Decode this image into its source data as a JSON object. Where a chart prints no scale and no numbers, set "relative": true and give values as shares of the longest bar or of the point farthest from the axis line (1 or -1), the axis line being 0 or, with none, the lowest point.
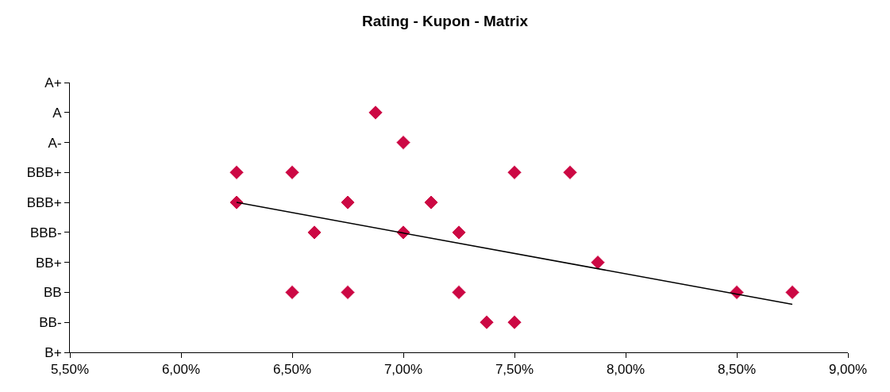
{
  "chart_data": {
    "type": "scatter",
    "title": "Rating - Kupon - Matrix",
    "xlim": [
      5.5,
      9.0
    ],
    "xticks": [
      {
        "value": 5.5,
        "label": "5,50%"
      },
      {
        "value": 6.0,
        "label": "6,00%"
      },
      {
        "value": 6.5,
        "label": "6,50%"
      },
      {
        "value": 7.0,
        "label": "7,00%"
      },
      {
        "value": 7.5,
        "label": "7,50%"
      },
      {
        "value": 8.0,
        "label": "8,00%"
      },
      {
        "value": 8.5,
        "label": "8,50%"
      },
      {
        "value": 9.0,
        "label": "9,00%"
      }
    ],
    "y_categories": [
      "A+",
      "A",
      "A-",
      "BBB+",
      "BBB+",
      "BBB-",
      "BB+",
      "BB",
      "BB-",
      "B+"
    ],
    "relative": true,
    "series": [
      {
        "marker": "diamond",
        "color": "#cc0844",
        "x": [
          6.875,
          7.0,
          6.25,
          6.5,
          7.5,
          7.75,
          6.25,
          6.75,
          7.125,
          6.6,
          7.0,
          7.25,
          7.875,
          6.5,
          6.75,
          7.25,
          8.5,
          8.75,
          7.375,
          7.5
        ],
        "values": [
          1,
          0.875,
          0.75,
          0.75,
          0.75,
          0.75,
          0.625,
          0.625,
          0.625,
          0.5,
          0.5,
          0.5,
          0.375,
          0.25,
          0.25,
          0.25,
          0.25,
          0.25,
          0.125,
          0.125
        ]
      },
      {
        "type": "line",
        "marker": "none",
        "line_style": "solid",
        "color": "#000000",
        "x": [
          6.25,
          8.75
        ],
        "values": [
          0.625,
          0.2
        ]
      }
    ]
  }
}
